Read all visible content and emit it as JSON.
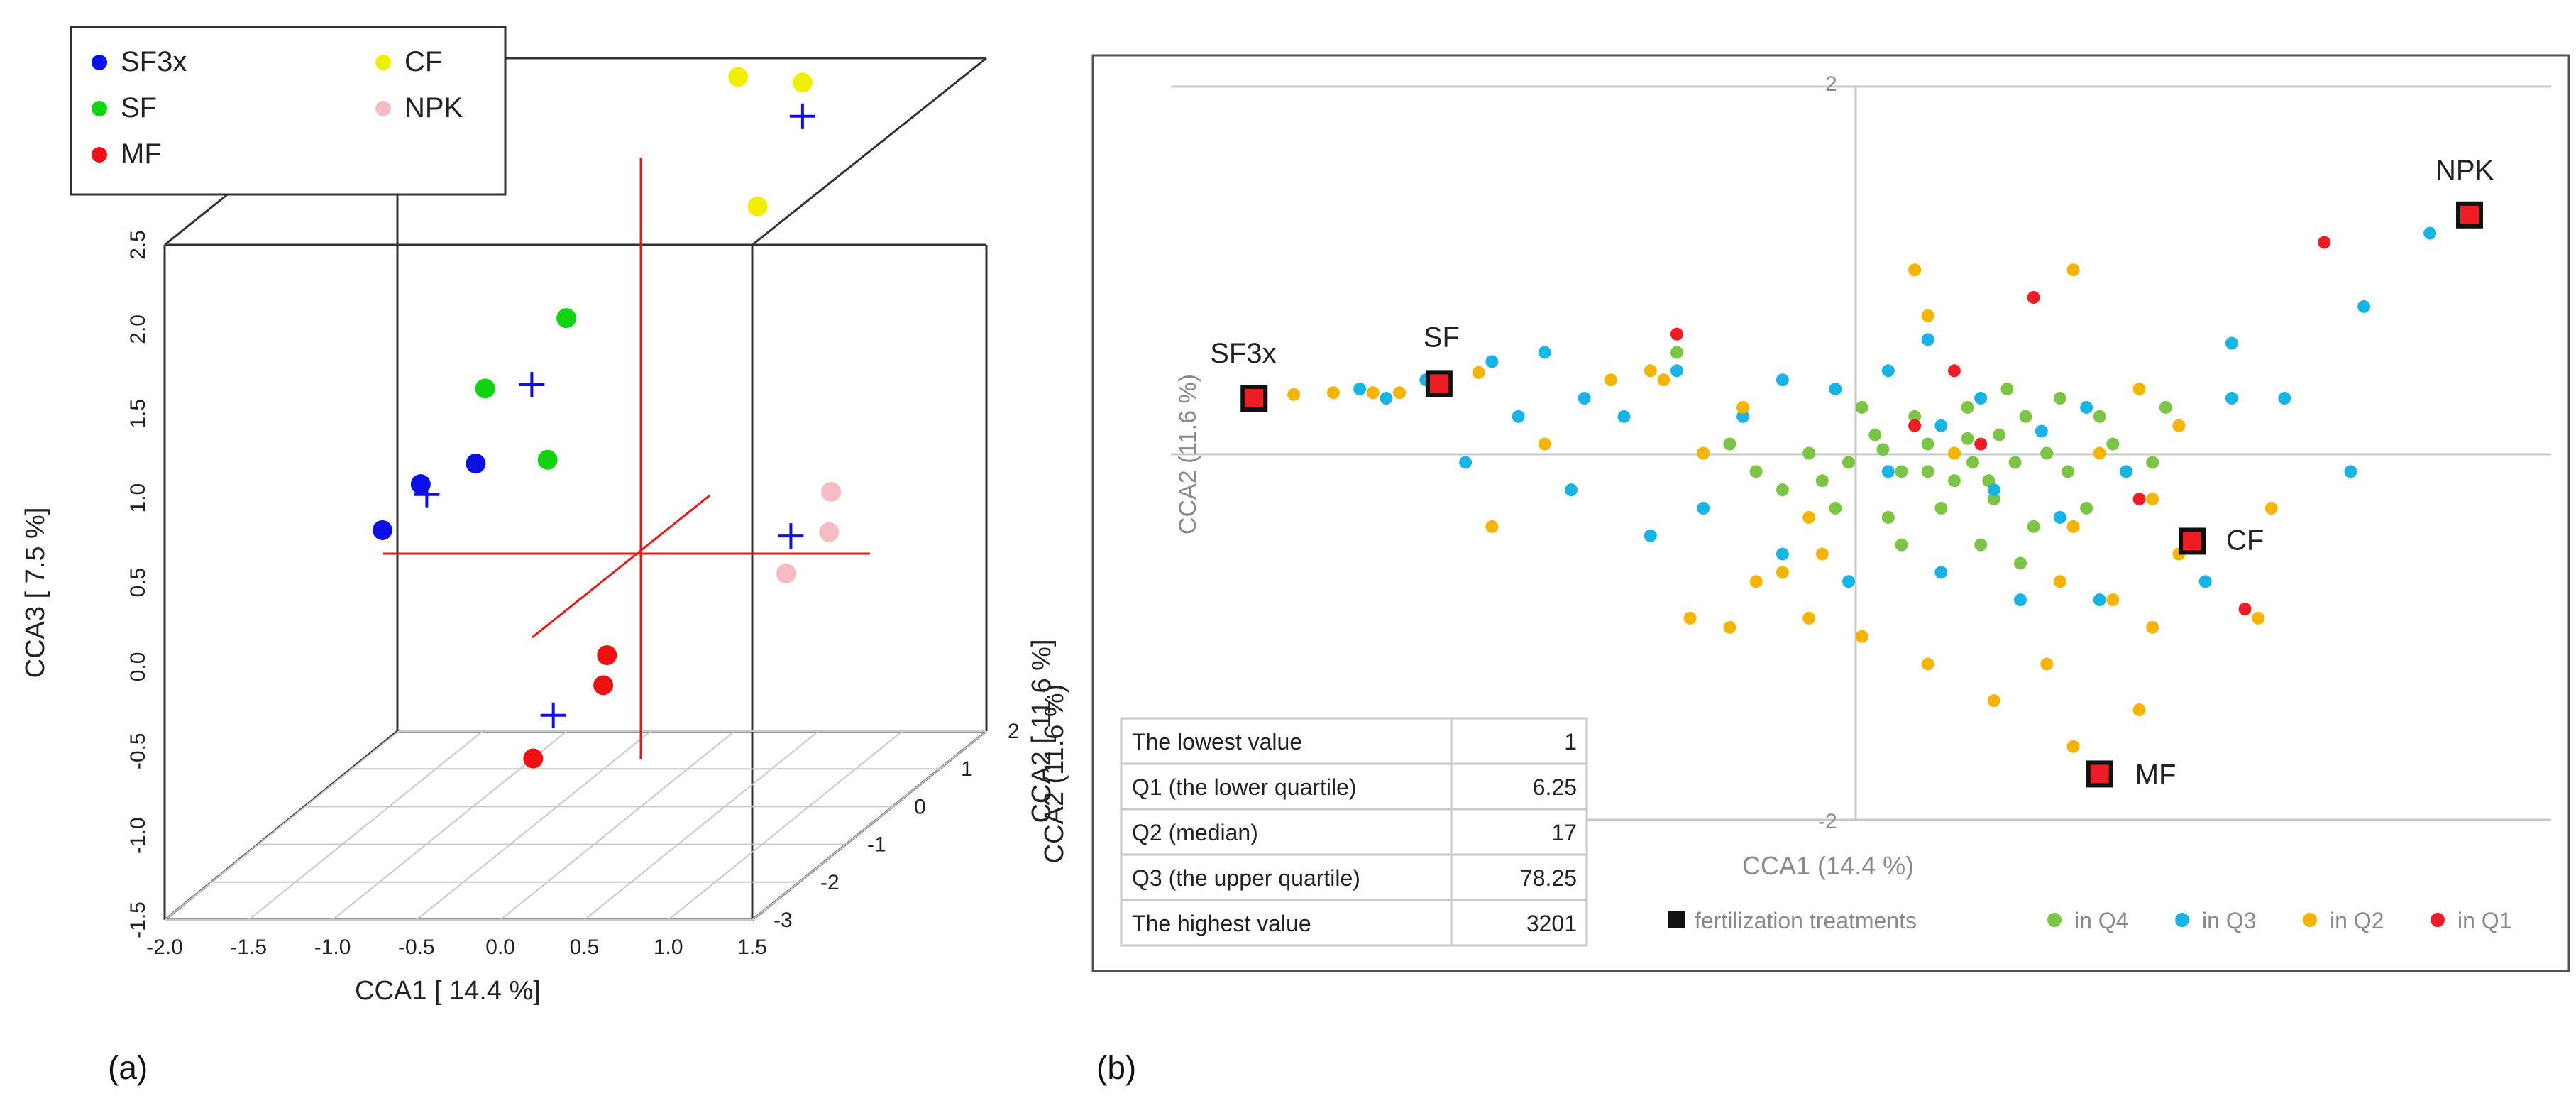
{
  "chart_data": [
    {
      "panel": "(a)",
      "type": "scatter",
      "title": "",
      "xlabel": "CCA1 [ 14.4 %]",
      "ylabel": "CCA3 [ 7.5 %]",
      "zlabel": "CCA2 [ 11.6 %]",
      "xlim": [
        -2.0,
        1.5
      ],
      "ylim": [
        -1.5,
        2.5
      ],
      "zlim": [
        -3,
        2
      ],
      "x_ticks": [
        "-2.0",
        "-1.5",
        "-1.0",
        "-0.5",
        "0.0",
        "0.5",
        "1.0",
        "1.5"
      ],
      "y_ticks": [
        "-1.5",
        "-1.0",
        "-0.5",
        "0.0",
        "0.5",
        "1.0",
        "1.5",
        "2.0",
        "2.5"
      ],
      "z_ticks": [
        "-3",
        "-2",
        "-1",
        "0",
        "1",
        "2"
      ],
      "legend": [
        {
          "name": "SF3x",
          "color": "#0a10e6"
        },
        {
          "name": "CF",
          "color": "#f2ee00"
        },
        {
          "name": "SF",
          "color": "#12d312"
        },
        {
          "name": "NPK",
          "color": "#f5bcc4"
        },
        {
          "name": "MF",
          "color": "#ee1111"
        }
      ],
      "series": [
        {
          "name": "SF3x",
          "color": "#0a10e6",
          "points": [
            {
              "x": -1.4,
              "y": 0.25,
              "z": -0.5
            },
            {
              "x": -1.2,
              "y": 0.5,
              "z": -0.4
            },
            {
              "x": -0.9,
              "y": 0.6,
              "z": -0.3
            }
          ]
        },
        {
          "name": "SF",
          "color": "#12d312",
          "points": [
            {
              "x": -0.9,
              "y": 1.0,
              "z": -0.1
            },
            {
              "x": -0.5,
              "y": 1.35,
              "z": 0.2
            },
            {
              "x": -0.5,
              "y": 0.6,
              "z": -0.2
            }
          ]
        },
        {
          "name": "MF",
          "color": "#ee1111",
          "points": [
            {
              "x": 0.3,
              "y": -0.2,
              "z": -1.8
            },
            {
              "x": 0.25,
              "y": -0.4,
              "z": -1.7
            },
            {
              "x": 0.0,
              "y": -0.7,
              "z": -2.3
            }
          ]
        },
        {
          "name": "CF",
          "color": "#f2ee00",
          "points": [
            {
              "x": 0.3,
              "y": 2.6,
              "z": 1.0
            },
            {
              "x": 0.6,
              "y": 2.5,
              "z": 1.3
            },
            {
              "x": 0.5,
              "y": 1.9,
              "z": 0.7
            }
          ]
        },
        {
          "name": "NPK",
          "color": "#f5bcc4",
          "points": [
            {
              "x": 1.3,
              "y": 0.5,
              "z": -0.6
            },
            {
              "x": 1.4,
              "y": 0.35,
              "z": -1.0
            },
            {
              "x": 1.2,
              "y": 0.15,
              "z": -1.2
            }
          ]
        }
      ],
      "centroids": [
        {
          "x": -1.15,
          "y": 0.45,
          "z": -0.45
        },
        {
          "x": -0.65,
          "y": 1.0,
          "z": 0.0
        },
        {
          "x": 0.05,
          "y": -0.5,
          "z": -2.05
        },
        {
          "x": 0.6,
          "y": 2.3,
          "z": 1.3
        },
        {
          "x": 1.2,
          "y": 0.35,
          "z": -1.1
        }
      ]
    },
    {
      "panel": "(b)",
      "type": "scatter",
      "title": "",
      "xlabel": "CCA1 (14.4 %)",
      "ylabel": "CCA2 (11.6 %)",
      "xlim": [
        -2.7,
        2.0
      ],
      "ylim": [
        -2,
        2
      ],
      "y_tick_labels": [
        "2",
        "-2"
      ],
      "treatments": [
        {
          "label": "SF3x",
          "x": -2.6,
          "y": 0.3
        },
        {
          "label": "SF",
          "x": -1.9,
          "y": 0.38
        },
        {
          "label": "NPK",
          "x": 2.0,
          "y": 1.3
        },
        {
          "label": "CF",
          "x": 0.95,
          "y": -0.48
        },
        {
          "label": "MF",
          "x": 0.6,
          "y": -1.75
        }
      ],
      "legend": [
        {
          "name": "fertilization treatments",
          "color": "#111111"
        },
        {
          "name": "in Q4",
          "color": "#7cc443"
        },
        {
          "name": "in Q3",
          "color": "#19b4e6"
        },
        {
          "name": "in Q2",
          "color": "#f5b400"
        },
        {
          "name": "in Q1",
          "color": "#ee1c24"
        }
      ],
      "table": {
        "rows": [
          {
            "label": "The lowest value",
            "value": "1"
          },
          {
            "label": "Q1 (the lower quartile)",
            "value": "6.25"
          },
          {
            "label": "Q2 (median)",
            "value": "17"
          },
          {
            "label": "Q3 (the upper quartile)",
            "value": "78.25"
          },
          {
            "label": "The highest value",
            "value": "3201"
          }
        ]
      },
      "series": [
        {
          "name": "in Q4",
          "color": "#7cc443",
          "points": [
            [
              -0.8,
              0.05
            ],
            [
              -0.5,
              0.0
            ],
            [
              -0.35,
              -0.05
            ],
            [
              -0.25,
              0.1
            ],
            [
              -0.15,
              -0.1
            ],
            [
              -0.05,
              0.05
            ],
            [
              0.05,
              0.0
            ],
            [
              0.12,
              -0.05
            ],
            [
              0.22,
              0.1
            ],
            [
              0.32,
              0.2
            ],
            [
              0.4,
              0.0
            ],
            [
              0.48,
              -0.1
            ],
            [
              -0.6,
              -0.2
            ],
            [
              -0.4,
              -0.3
            ],
            [
              -0.2,
              -0.35
            ],
            [
              0.0,
              -0.3
            ],
            [
              0.2,
              -0.25
            ],
            [
              0.35,
              -0.4
            ],
            [
              -0.1,
              0.2
            ],
            [
              0.1,
              0.25
            ],
            [
              -0.3,
              0.25
            ],
            [
              0.25,
              0.35
            ],
            [
              0.45,
              0.3
            ],
            [
              0.6,
              0.2
            ],
            [
              0.65,
              0.05
            ],
            [
              0.8,
              -0.05
            ],
            [
              -0.7,
              -0.1
            ],
            [
              -0.15,
              -0.5
            ],
            [
              0.15,
              -0.5
            ],
            [
              0.3,
              -0.6
            ],
            [
              -0.05,
              -0.1
            ],
            [
              0.05,
              -0.15
            ],
            [
              0.1,
              0.08
            ],
            [
              0.18,
              -0.15
            ],
            [
              0.28,
              -0.05
            ],
            [
              -0.22,
              0.02
            ],
            [
              -0.45,
              -0.15
            ],
            [
              -1.0,
              0.55
            ],
            [
              0.55,
              -0.3
            ],
            [
              0.85,
              0.25
            ]
          ]
        },
        {
          "name": "in Q3",
          "color": "#19b4e6",
          "points": [
            [
              -2.2,
              0.35
            ],
            [
              -2.1,
              0.3
            ],
            [
              -1.95,
              0.4
            ],
            [
              -1.7,
              0.5
            ],
            [
              -1.6,
              0.2
            ],
            [
              -1.5,
              0.55
            ],
            [
              -1.35,
              0.3
            ],
            [
              -1.2,
              0.2
            ],
            [
              -1.0,
              0.45
            ],
            [
              -0.9,
              0.0
            ],
            [
              -0.75,
              0.2
            ],
            [
              -0.6,
              0.4
            ],
            [
              -0.4,
              0.35
            ],
            [
              -0.2,
              0.45
            ],
            [
              0.0,
              0.15
            ],
            [
              0.2,
              -0.2
            ],
            [
              0.45,
              -0.35
            ],
            [
              0.7,
              -0.1
            ],
            [
              0.9,
              0.15
            ],
            [
              1.1,
              0.3
            ],
            [
              1.3,
              0.3
            ],
            [
              1.55,
              -0.1
            ],
            [
              1.6,
              0.8
            ],
            [
              1.85,
              1.2
            ],
            [
              -1.8,
              -0.05
            ],
            [
              -1.1,
              -0.45
            ],
            [
              -0.6,
              -0.55
            ],
            [
              -0.35,
              -0.7
            ],
            [
              0.0,
              -0.65
            ],
            [
              0.3,
              -0.8
            ],
            [
              1.0,
              -0.7
            ],
            [
              1.1,
              0.6
            ],
            [
              0.55,
              0.25
            ],
            [
              -0.9,
              -0.3
            ],
            [
              -1.4,
              -0.2
            ],
            [
              0.15,
              0.3
            ],
            [
              0.6,
              -0.8
            ],
            [
              -0.2,
              -0.1
            ],
            [
              0.38,
              0.12
            ],
            [
              -0.05,
              0.62
            ]
          ]
        },
        {
          "name": "in Q2",
          "color": "#f5b400",
          "points": [
            [
              -2.45,
              0.32
            ],
            [
              -2.3,
              0.33
            ],
            [
              -2.15,
              0.33
            ],
            [
              -2.05,
              0.33
            ],
            [
              -1.75,
              0.44
            ],
            [
              -1.5,
              0.05
            ],
            [
              -1.25,
              0.4
            ],
            [
              -1.05,
              0.4
            ],
            [
              -0.9,
              0.0
            ],
            [
              -1.7,
              -0.4
            ],
            [
              -0.7,
              -0.7
            ],
            [
              -0.5,
              -0.9
            ],
            [
              -0.3,
              -1.0
            ],
            [
              -0.05,
              -1.15
            ],
            [
              0.4,
              -1.15
            ],
            [
              0.45,
              -0.7
            ],
            [
              0.9,
              -0.55
            ],
            [
              1.2,
              -0.9
            ],
            [
              0.75,
              -1.4
            ],
            [
              0.5,
              -1.6
            ],
            [
              -0.8,
              -0.95
            ],
            [
              -0.6,
              -0.65
            ],
            [
              0.65,
              -0.8
            ],
            [
              0.8,
              -0.95
            ],
            [
              0.9,
              0.15
            ],
            [
              0.6,
              0.0
            ],
            [
              0.5,
              1.0
            ],
            [
              -0.1,
              1.0
            ],
            [
              -0.05,
              0.75
            ],
            [
              -0.5,
              -0.35
            ],
            [
              0.8,
              -0.25
            ],
            [
              -1.1,
              0.45
            ],
            [
              -0.45,
              -0.55
            ],
            [
              0.2,
              -1.35
            ],
            [
              0.5,
              -0.4
            ],
            [
              -0.75,
              0.25
            ],
            [
              1.25,
              -0.3
            ],
            [
              0.05,
              0.0
            ],
            [
              -0.95,
              -0.9
            ],
            [
              0.75,
              0.35
            ]
          ]
        },
        {
          "name": "in Q1",
          "color": "#ee1c24",
          "points": [
            [
              -1.0,
              0.65
            ],
            [
              -0.1,
              0.15
            ],
            [
              0.05,
              0.45
            ],
            [
              0.15,
              0.05
            ],
            [
              0.35,
              0.85
            ],
            [
              0.75,
              -0.25
            ],
            [
              1.15,
              -0.85
            ],
            [
              1.45,
              1.15
            ]
          ]
        }
      ]
    }
  ],
  "panel_labels": {
    "a": "(a)",
    "b": "(b)"
  }
}
